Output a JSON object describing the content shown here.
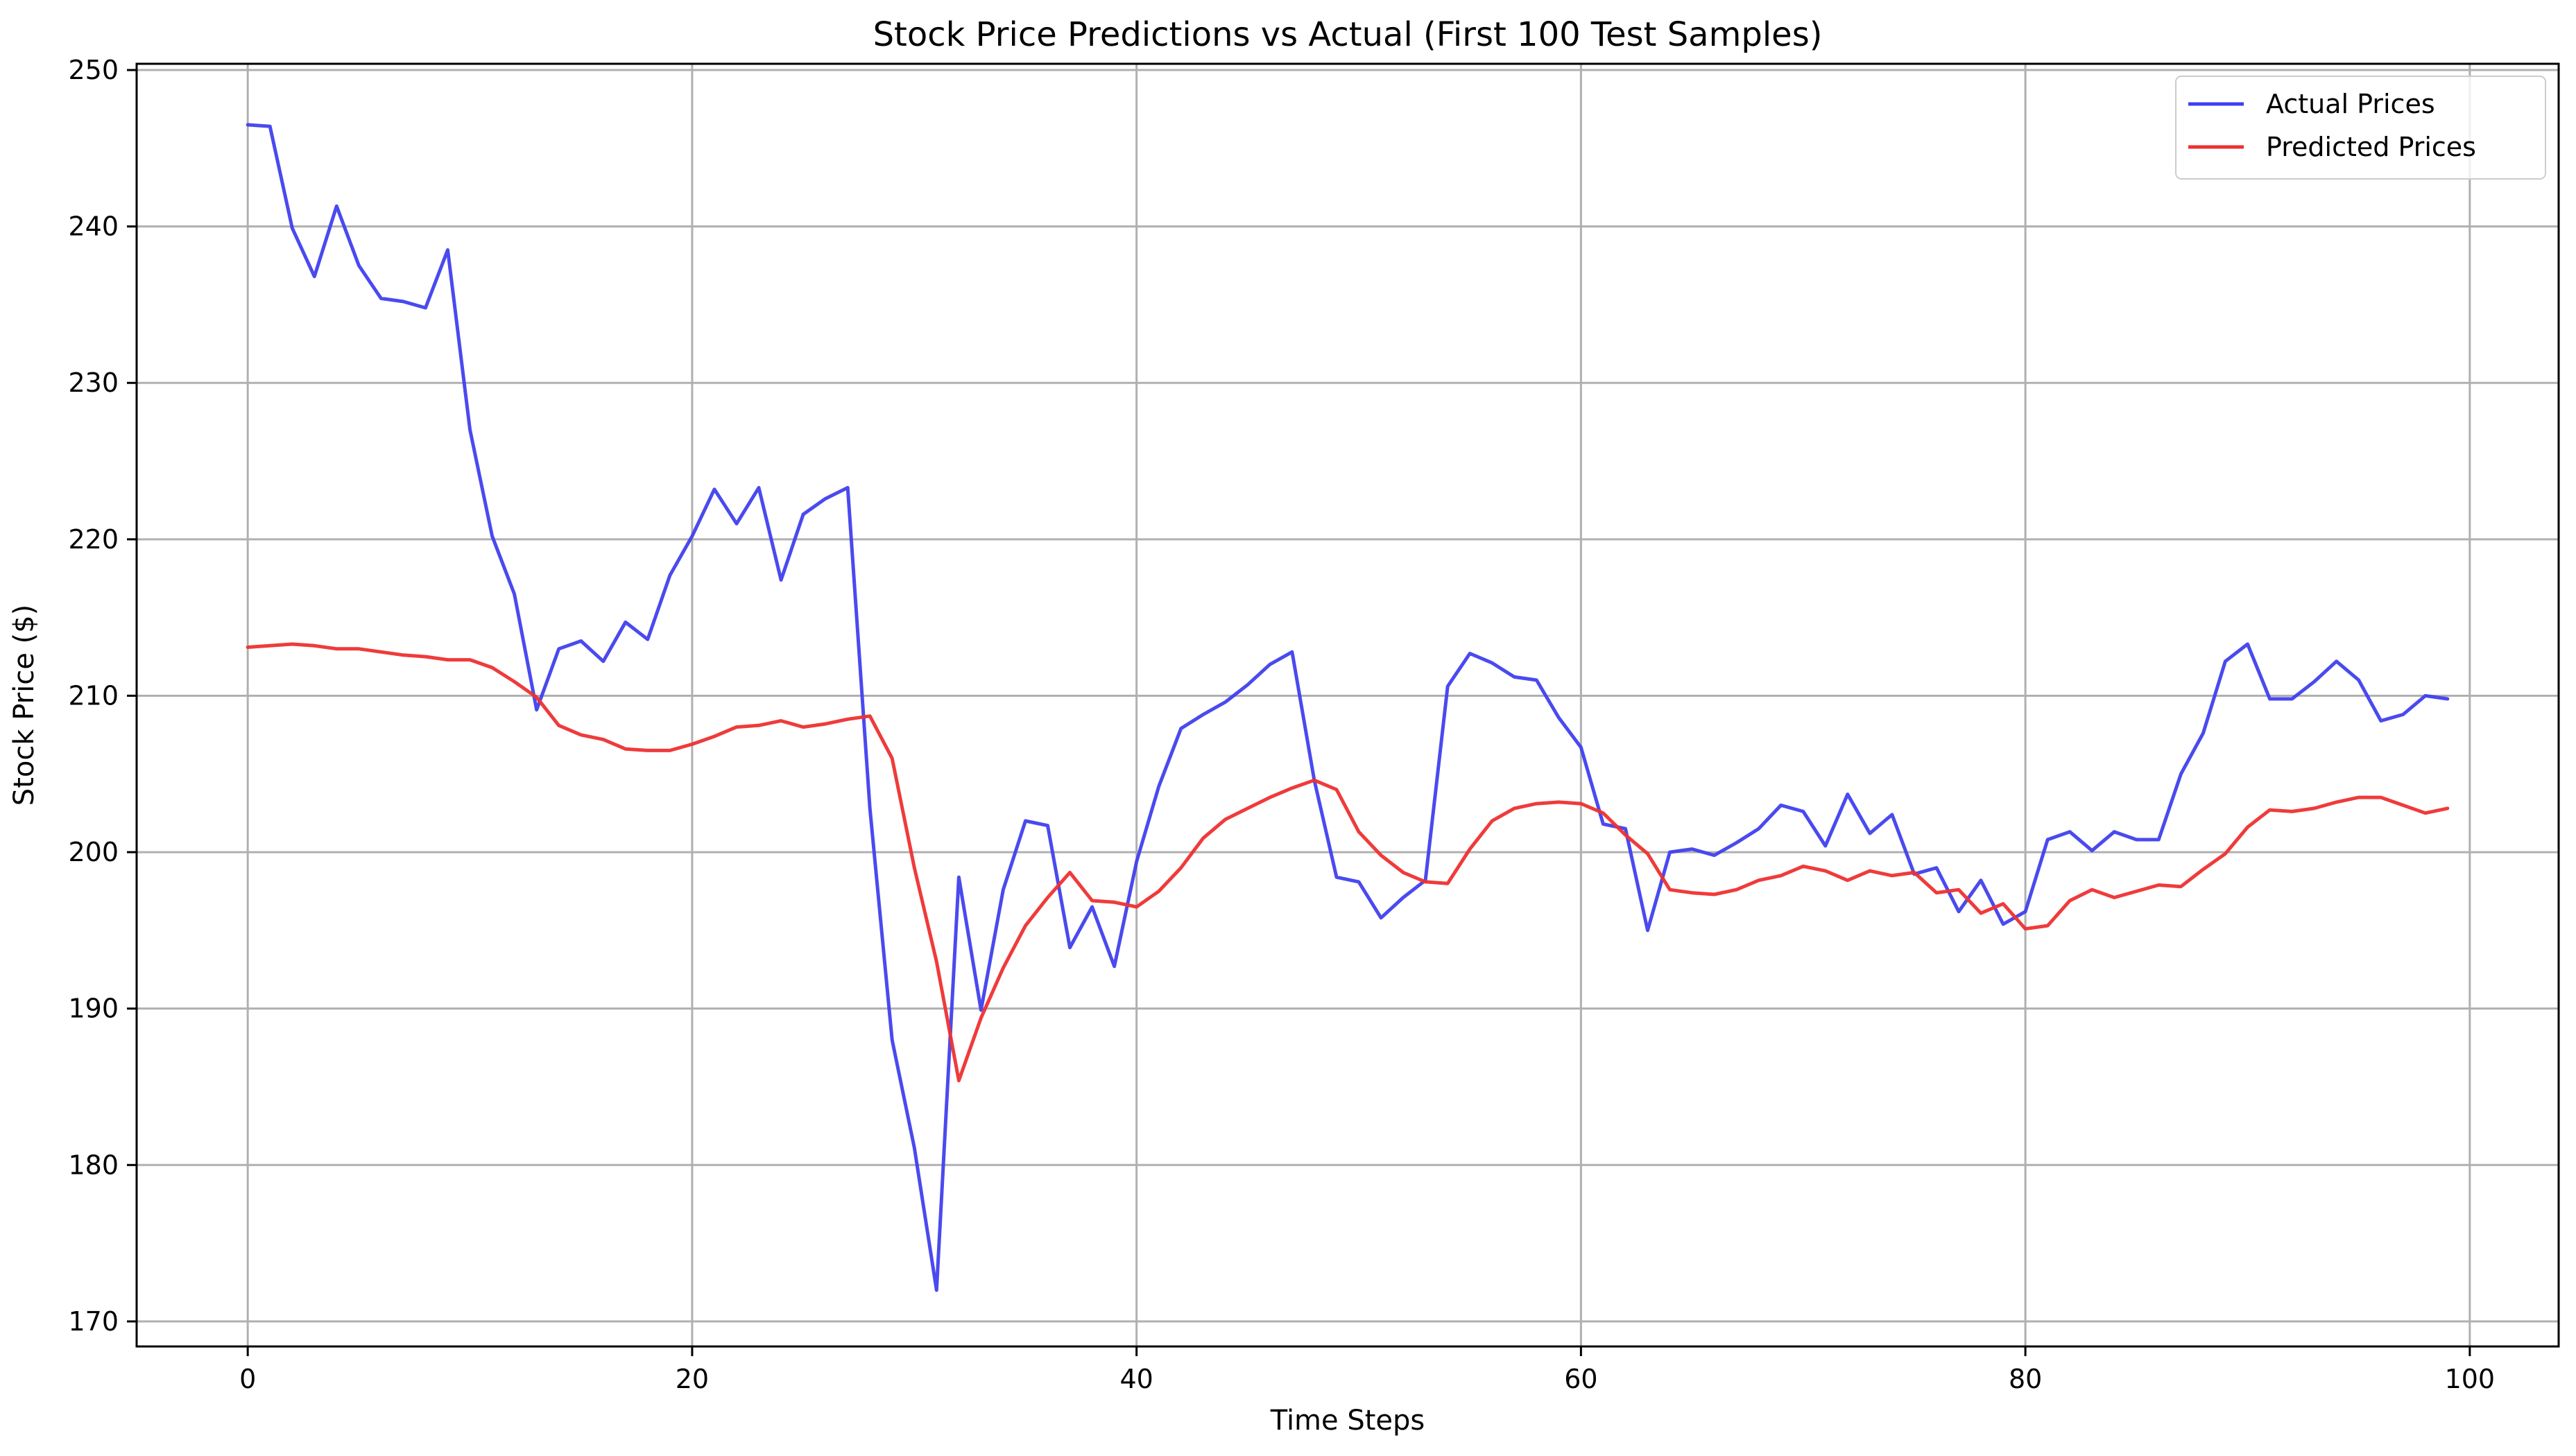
{
  "chart_data": {
    "type": "line",
    "title": "Stock Price Predictions vs Actual (First 100 Test Samples)",
    "xlabel": "Time Steps",
    "ylabel": "Stock Price ($)",
    "xlim": [
      -5,
      104
    ],
    "ylim": [
      168.4,
      250.4
    ],
    "xticks": [
      0,
      20,
      40,
      60,
      80,
      100
    ],
    "yticks": [
      170,
      180,
      190,
      200,
      210,
      220,
      230,
      240,
      250
    ],
    "grid": true,
    "legend_position": "top-right",
    "x": [
      0,
      1,
      2,
      3,
      4,
      5,
      6,
      7,
      8,
      9,
      10,
      11,
      12,
      13,
      14,
      15,
      16,
      17,
      18,
      19,
      20,
      21,
      22,
      23,
      24,
      25,
      26,
      27,
      28,
      29,
      30,
      31,
      32,
      33,
      34,
      35,
      36,
      37,
      38,
      39,
      40,
      41,
      42,
      43,
      44,
      45,
      46,
      47,
      48,
      49,
      50,
      51,
      52,
      53,
      54,
      55,
      56,
      57,
      58,
      59,
      60,
      61,
      62,
      63,
      64,
      65,
      66,
      67,
      68,
      69,
      70,
      71,
      72,
      73,
      74,
      75,
      76,
      77,
      78,
      79,
      80,
      81,
      82,
      83,
      84,
      85,
      86,
      87,
      88,
      89,
      90,
      91,
      92,
      93,
      94,
      95,
      96,
      97,
      98,
      99
    ],
    "series": [
      {
        "name": "Actual Prices",
        "color": "#4040ee",
        "values": [
          246.5,
          246.4,
          239.9,
          236.8,
          241.3,
          237.5,
          235.4,
          235.2,
          234.8,
          238.5,
          227.0,
          220.2,
          216.5,
          209.1,
          213.0,
          213.5,
          212.2,
          214.7,
          213.6,
          217.7,
          220.2,
          223.2,
          221.0,
          223.3,
          217.4,
          221.6,
          222.6,
          223.3,
          202.8,
          188.0,
          181.1,
          172.0,
          198.4,
          189.9,
          197.6,
          202.0,
          201.7,
          193.9,
          196.5,
          192.7,
          199.4,
          204.2,
          207.9,
          208.8,
          209.6,
          210.7,
          212.0,
          212.8,
          204.6,
          198.4,
          198.1,
          195.8,
          197.1,
          198.2,
          210.6,
          212.7,
          212.1,
          211.2,
          211.0,
          208.6,
          206.7,
          201.8,
          201.5,
          195.0,
          200.0,
          200.2,
          199.8,
          200.6,
          201.5,
          203.0,
          202.6,
          200.4,
          203.7,
          201.2,
          202.4,
          198.6,
          199.0,
          196.2,
          198.2,
          195.4,
          196.2,
          200.8,
          201.3,
          200.1,
          201.3,
          200.8,
          200.8,
          205.0,
          207.6,
          212.2,
          213.3,
          209.8,
          209.8,
          210.9,
          212.2,
          211.0,
          208.4,
          208.8,
          210.0,
          209.8
        ]
      },
      {
        "name": "Predicted Prices",
        "color": "#ee3030",
        "values": [
          213.1,
          213.2,
          213.3,
          213.2,
          213.0,
          213.0,
          212.8,
          212.6,
          212.5,
          212.3,
          212.3,
          211.8,
          210.9,
          209.9,
          208.1,
          207.5,
          207.2,
          206.6,
          206.5,
          206.5,
          206.9,
          207.4,
          208.0,
          208.1,
          208.4,
          208.0,
          208.2,
          208.5,
          208.7,
          206.0,
          199.0,
          193.0,
          185.4,
          189.4,
          192.6,
          195.3,
          197.1,
          198.7,
          196.9,
          196.8,
          196.5,
          197.5,
          199.0,
          200.9,
          202.1,
          202.8,
          203.5,
          204.1,
          204.6,
          204.0,
          201.3,
          199.8,
          198.7,
          198.1,
          198.0,
          200.2,
          202.0,
          202.8,
          203.1,
          203.2,
          203.1,
          202.5,
          201.1,
          199.9,
          197.6,
          197.4,
          197.3,
          197.6,
          198.2,
          198.5,
          199.1,
          198.8,
          198.2,
          198.8,
          198.5,
          198.7,
          197.4,
          197.6,
          196.1,
          196.7,
          195.1,
          195.3,
          196.9,
          197.6,
          197.1,
          197.5,
          197.9,
          197.8,
          198.9,
          199.9,
          201.6,
          202.7,
          202.6,
          202.8,
          203.2,
          203.5,
          203.5,
          203.0,
          202.5,
          202.8
        ]
      }
    ]
  }
}
